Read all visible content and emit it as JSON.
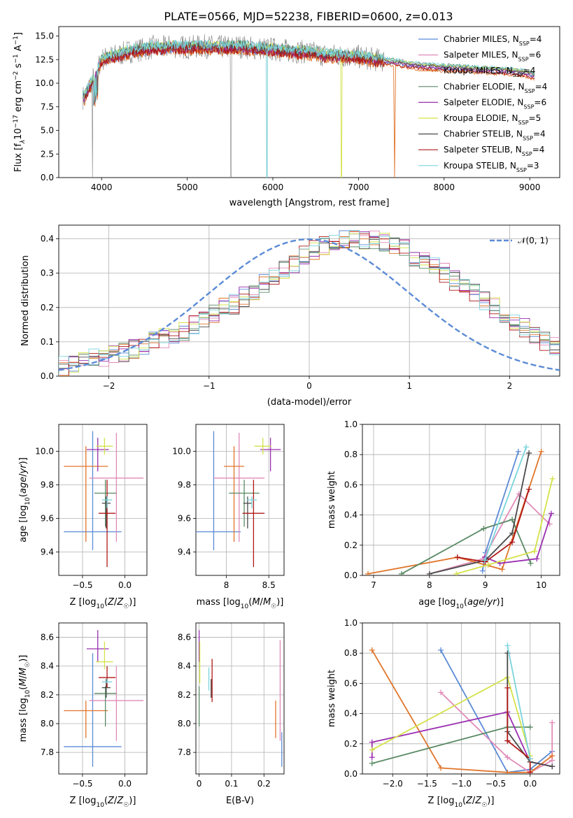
{
  "title": "PLATE=0566, MJD=52238, FIBERID=0600, z=0.013",
  "colors": [
    "#5b8bd6",
    "#e08bb8",
    "#e0752b",
    "#5a8a65",
    "#9a2fb0",
    "#d4e24a",
    "#4a4a4a",
    "#b01818",
    "#7ad4dc"
  ],
  "gray": "#808080",
  "chart_data": [
    {
      "id": "spectrum",
      "type": "line",
      "xlabel": "wavelength [Angstrom, rest frame]",
      "ylabel": "Flux [f_λ 10^-17 erg cm^-2 s^-1 A^-1]",
      "xlim": [
        3500,
        9350
      ],
      "ylim": [
        0,
        16
      ],
      "xticks": [
        4000,
        5000,
        6000,
        7000,
        8000,
        9000
      ],
      "yticks": [
        0.0,
        2.5,
        5.0,
        7.5,
        10.0,
        12.5,
        15.0
      ],
      "grid": false,
      "legend_position": "top-right",
      "data_points": {
        "x": [
          3800,
          3850,
          3900,
          3950,
          4000,
          4100,
          4200,
          4300,
          4400,
          4500,
          4600,
          4700,
          4800,
          5000,
          5200,
          5400,
          5600,
          5800,
          6000,
          6200,
          6400,
          6600,
          6800,
          7000,
          7200,
          7400,
          7600,
          7800,
          8000,
          8200,
          8400,
          8600,
          8800,
          9000,
          9050
        ],
        "y": [
          8.5,
          9.5,
          10.5,
          11.5,
          12.5,
          12.8,
          13.0,
          13.3,
          13.5,
          13.6,
          13.8,
          13.7,
          13.9,
          13.8,
          13.9,
          13.8,
          13.9,
          13.7,
          13.6,
          13.4,
          13.3,
          13.0,
          12.9,
          12.8,
          12.5,
          12.3,
          12.0,
          11.8,
          11.7,
          11.6,
          11.5,
          11.4,
          11.3,
          11.0,
          10.8
        ]
      },
      "series": [
        {
          "name": "Chabrier MILES, N_SSP=4"
        },
        {
          "name": "Salpeter MILES, N_SSP=6"
        },
        {
          "name": "Kroupa MILES, N_SSP=4"
        },
        {
          "name": "Chabrier ELODIE, N_SSP=4"
        },
        {
          "name": "Salpeter ELODIE, N_SSP=6"
        },
        {
          "name": "Kroupa ELODIE, N_SSP=5"
        },
        {
          "name": "Chabrier STELIB, N_SSP=4"
        },
        {
          "name": "Salpeter STELIB, N_SSP=4"
        },
        {
          "name": "Kroupa STELIB, N_SSP=3"
        }
      ],
      "legend": [
        {
          "prefix": "Chabrier MILES, N",
          "sub": "SSP",
          "suffix": "=4"
        },
        {
          "prefix": "Salpeter MILES, N",
          "sub": "SSP",
          "suffix": "=6"
        },
        {
          "prefix": "Kroupa MILES, N",
          "sub": "SSP",
          "suffix": "=4"
        },
        {
          "prefix": "Chabrier ELODIE, N",
          "sub": "SSP",
          "suffix": "=4"
        },
        {
          "prefix": "Salpeter ELODIE, N",
          "sub": "SSP",
          "suffix": "=6"
        },
        {
          "prefix": "Kroupa ELODIE, N",
          "sub": "SSP",
          "suffix": "=5"
        },
        {
          "prefix": "Chabrier STELIB, N",
          "sub": "SSP",
          "suffix": "=4"
        },
        {
          "prefix": "Salpeter STELIB, N",
          "sub": "SSP",
          "suffix": "=4"
        },
        {
          "prefix": "Kroupa STELIB, N",
          "sub": "SSP",
          "suffix": "=3"
        }
      ]
    },
    {
      "id": "residuals",
      "type": "histogram",
      "xlabel": "(data-model)/error",
      "ylabel": "Normed distribution",
      "xlim": [
        -2.5,
        2.5
      ],
      "ylim": [
        0,
        0.44
      ],
      "xticks": [
        -2,
        -1,
        0,
        1,
        2
      ],
      "xticklabels": [
        "−2",
        "−1",
        "0",
        "1",
        "2"
      ],
      "yticks": [
        0.0,
        0.1,
        0.2,
        0.3,
        0.4
      ],
      "grid": true,
      "legend_position": "top-right",
      "legend": "𝒩(0, 1)",
      "bin_width": 0.1,
      "bin_range": [
        -2.5,
        2.5
      ],
      "values": [
        0.03,
        0.04,
        0.04,
        0.05,
        0.05,
        0.06,
        0.07,
        0.08,
        0.09,
        0.1,
        0.11,
        0.12,
        0.13,
        0.15,
        0.16,
        0.18,
        0.2,
        0.21,
        0.23,
        0.25,
        0.27,
        0.29,
        0.31,
        0.33,
        0.35,
        0.37,
        0.38,
        0.39,
        0.4,
        0.4,
        0.4,
        0.4,
        0.39,
        0.38,
        0.37,
        0.35,
        0.34,
        0.32,
        0.3,
        0.28,
        0.26,
        0.24,
        0.22,
        0.2,
        0.18,
        0.16,
        0.14,
        0.12,
        0.1,
        0.09
      ]
    },
    {
      "id": "age_vs_Z",
      "type": "errorbar",
      "xlabel": "Z [log10(Z/Z☉)]",
      "ylabel": "age [log10(age/yr)]",
      "xlim": [
        -0.78,
        0.26
      ],
      "ylim": [
        9.26,
        10.16
      ],
      "xticks": [
        -0.5,
        0.0
      ],
      "xticklabels": [
        "−0.5",
        "0.0"
      ],
      "yticks": [
        9.4,
        9.6,
        9.8,
        10.0
      ],
      "grid": true,
      "points": [
        {
          "x": -0.38,
          "xerr": 0.34,
          "y": 9.52,
          "yerr": [
            0.11,
            0.6
          ]
        },
        {
          "x": -0.1,
          "xerr": 0.32,
          "y": 9.84,
          "yerr": [
            0.38,
            0.27
          ]
        },
        {
          "x": -0.46,
          "xerr": 0.26,
          "y": 9.91,
          "yerr": [
            0.45,
            0.12
          ]
        },
        {
          "x": -0.23,
          "xerr": 0.13,
          "y": 9.75,
          "yerr": [
            0.2,
            0.08
          ]
        },
        {
          "x": -0.32,
          "xerr": 0.13,
          "y": 10.01,
          "yerr": [
            0.13,
            0.07
          ]
        },
        {
          "x": -0.24,
          "xerr": 0.1,
          "y": 10.03,
          "yerr": [
            0.05,
            0.05
          ]
        },
        {
          "x": -0.22,
          "xerr": 0.05,
          "y": 9.69,
          "yerr": [
            0.15,
            0.04
          ]
        },
        {
          "x": -0.21,
          "xerr": 0.1,
          "y": 9.63,
          "yerr": [
            0.32,
            0.2
          ]
        },
        {
          "x": -0.21,
          "xerr": 0.06,
          "y": 9.71,
          "yerr": [
            0.05,
            0.02
          ]
        }
      ]
    },
    {
      "id": "age_vs_mass",
      "type": "errorbar",
      "xlabel": "mass [log10(M/M☉)]",
      "ylabel": "",
      "xlim": [
        7.64,
        8.68
      ],
      "ylim": [
        9.26,
        10.16
      ],
      "xticks": [
        8.0,
        8.5
      ],
      "yticks": [
        9.4,
        9.6,
        9.8,
        10.0
      ],
      "grid": true,
      "points": [
        {
          "x": 7.85,
          "xerr": 0.32,
          "y": 9.52,
          "yerr": [
            0.11,
            0.6
          ]
        },
        {
          "x": 8.15,
          "xerr": 0.3,
          "y": 9.84,
          "yerr": [
            0.38,
            0.27
          ]
        },
        {
          "x": 8.09,
          "xerr": 0.12,
          "y": 9.91,
          "yerr": [
            0.45,
            0.12
          ]
        },
        {
          "x": 8.21,
          "xerr": 0.18,
          "y": 9.75,
          "yerr": [
            0.2,
            0.08
          ]
        },
        {
          "x": 8.52,
          "xerr": 0.12,
          "y": 10.01,
          "yerr": [
            0.13,
            0.07
          ]
        },
        {
          "x": 8.43,
          "xerr": 0.1,
          "y": 10.03,
          "yerr": [
            0.05,
            0.05
          ]
        },
        {
          "x": 8.25,
          "xerr": 0.05,
          "y": 9.69,
          "yerr": [
            0.15,
            0.04
          ]
        },
        {
          "x": 8.32,
          "xerr": 0.13,
          "y": 9.63,
          "yerr": [
            0.32,
            0.2
          ]
        },
        {
          "x": 8.3,
          "xerr": 0.06,
          "y": 9.71,
          "yerr": [
            0.05,
            0.02
          ]
        }
      ]
    },
    {
      "id": "weight_vs_age",
      "type": "line",
      "xlabel": "age [log10(age/yr)]",
      "ylabel": "mass weight",
      "xlim": [
        6.8,
        10.33
      ],
      "ylim": [
        0,
        1
      ],
      "xticks": [
        7,
        8,
        9,
        10
      ],
      "yticks": [
        0.0,
        0.2,
        0.4,
        0.6,
        0.8,
        1.0
      ],
      "grid": true,
      "series": [
        {
          "x": [
            8.95,
            9.0,
            9.59
          ],
          "y": [
            0.03,
            0.15,
            0.82
          ]
        },
        {
          "x": [
            8.0,
            8.96,
            9.6,
            10.15
          ],
          "y": [
            0.01,
            0.11,
            0.54,
            0.34
          ]
        },
        {
          "x": [
            6.9,
            8.5,
            9.3,
            10.0
          ],
          "y": [
            0.01,
            0.12,
            0.04,
            0.82
          ]
        },
        {
          "x": [
            7.5,
            8.97,
            9.48,
            9.81
          ],
          "y": [
            0.01,
            0.31,
            0.37,
            0.08
          ]
        },
        {
          "x": [
            8.99,
            9.26,
            9.92,
            10.18
          ],
          "y": [
            0.12,
            0.08,
            0.11,
            0.41
          ]
        },
        {
          "x": [
            8.48,
            9.05,
            9.88,
            10.2
          ],
          "y": [
            0.01,
            0.07,
            0.16,
            0.64
          ]
        },
        {
          "x": [
            8.0,
            9.0,
            9.48,
            9.78
          ],
          "y": [
            0.01,
            0.1,
            0.28,
            0.81
          ]
        },
        {
          "x": [
            8.5,
            9.0,
            9.48,
            9.78
          ],
          "y": [
            0.12,
            0.09,
            0.22,
            0.57
          ]
        },
        {
          "x": [
            8.99,
            9.73
          ],
          "y": [
            0.1,
            0.85
          ]
        }
      ]
    },
    {
      "id": "mass_vs_Z",
      "type": "errorbar",
      "xlabel": "Z [log10(Z/Z☉)]",
      "ylabel": "mass [log10(M/M☉)]",
      "xlim": [
        -0.78,
        0.26
      ],
      "ylim": [
        7.65,
        8.7
      ],
      "xticks": [
        -0.5,
        0.0
      ],
      "xticklabels": [
        "−0.5",
        "0.0"
      ],
      "yticks": [
        7.8,
        8.0,
        8.2,
        8.4,
        8.6
      ],
      "grid": true,
      "points": [
        {
          "x": -0.38,
          "xerr": 0.34,
          "y": 7.84,
          "yerr": [
            0.14,
            0.65
          ]
        },
        {
          "x": -0.1,
          "xerr": 0.32,
          "y": 8.16,
          "yerr": [
            0.28,
            0.24
          ]
        },
        {
          "x": -0.46,
          "xerr": 0.26,
          "y": 8.09,
          "yerr": [
            0.19,
            0.07
          ]
        },
        {
          "x": -0.23,
          "xerr": 0.13,
          "y": 8.21,
          "yerr": [
            0.23,
            0.05
          ]
        },
        {
          "x": -0.32,
          "xerr": 0.13,
          "y": 8.52,
          "yerr": [
            0.09,
            0.13
          ]
        },
        {
          "x": -0.24,
          "xerr": 0.1,
          "y": 8.43,
          "yerr": [
            0.05,
            0.14
          ]
        },
        {
          "x": -0.22,
          "xerr": 0.05,
          "y": 8.25,
          "yerr": [
            0.07,
            0.06
          ]
        },
        {
          "x": -0.21,
          "xerr": 0.1,
          "y": 8.32,
          "yerr": [
            0.07,
            0.08
          ]
        },
        {
          "x": -0.21,
          "xerr": 0.06,
          "y": 8.29,
          "yerr": [
            0.01,
            0.02
          ]
        }
      ]
    },
    {
      "id": "mass_vs_EBV",
      "type": "errorbar",
      "xlabel": "E(B-V)",
      "ylabel": "",
      "xlim": [
        -0.01,
        0.262
      ],
      "ylim": [
        7.65,
        8.7
      ],
      "xticks": [
        0.0,
        0.1,
        0.2
      ],
      "yticks": [
        7.8,
        8.0,
        8.2,
        8.4,
        8.6
      ],
      "grid": true,
      "points": [
        {
          "x": 0.255,
          "xerr": 0,
          "y": 7.84,
          "yerr": [
            0.14,
            0.1
          ]
        },
        {
          "x": 0.25,
          "xerr": 0,
          "y": 8.16,
          "yerr": [
            0.28,
            0.42
          ]
        },
        {
          "x": 0.236,
          "xerr": 0,
          "y": 8.09,
          "yerr": [
            0.19,
            0.07
          ]
        },
        {
          "x": 0.0,
          "xerr": 0,
          "y": 8.21,
          "yerr": [
            0.23,
            0.05
          ]
        },
        {
          "x": 0.0,
          "xerr": 0,
          "y": 8.52,
          "yerr": [
            0.09,
            0.13
          ]
        },
        {
          "x": 0.002,
          "xerr": 0,
          "y": 8.43,
          "yerr": [
            0.15,
            0.14
          ]
        },
        {
          "x": 0.037,
          "xerr": 0,
          "y": 8.25,
          "yerr": [
            0.07,
            0.06
          ]
        },
        {
          "x": 0.04,
          "xerr": 0,
          "y": 8.32,
          "yerr": [
            0.17,
            0.13
          ]
        },
        {
          "x": 0.03,
          "xerr": 0,
          "y": 8.29,
          "yerr": [
            0.06,
            0.1
          ]
        }
      ]
    },
    {
      "id": "weight_vs_Z",
      "type": "line",
      "xlabel": "Z [log10(Z/Z☉)]",
      "ylabel": "mass weight",
      "xlim": [
        -2.44,
        0.43
      ],
      "ylim": [
        0,
        1
      ],
      "xticks": [
        -2.0,
        -1.5,
        -1.0,
        -0.5,
        0.0
      ],
      "xticklabels": [
        "−2.0",
        "−1.5",
        "−1.0",
        "−0.5",
        "0.0"
      ],
      "yticks": [
        0.0,
        0.2,
        0.4,
        0.6,
        0.8,
        1.0
      ],
      "grid": true,
      "series": [
        {
          "x": [
            -1.3,
            -0.33,
            0.0,
            0.32
          ],
          "y": [
            0.82,
            0.01,
            0.03,
            0.15
          ]
        },
        {
          "x": [
            -1.3,
            -0.33,
            0.0,
            0.32,
            0.32
          ],
          "y": [
            0.54,
            0.11,
            0.01,
            0.09,
            0.34
          ]
        },
        {
          "x": [
            -2.3,
            -1.3,
            -0.33,
            0.0,
            0.32
          ],
          "y": [
            0.82,
            0.04,
            0.01,
            0.01,
            0.12
          ]
        },
        {
          "x": [
            -2.3,
            -0.33,
            0.0
          ],
          "y": [
            0.07,
            0.31,
            0.31
          ]
        },
        {
          "x": [
            -2.3,
            -2.3,
            -0.33,
            0.0,
            0.32
          ],
          "y": [
            0.11,
            0.21,
            0.41,
            0.08,
            0.05
          ]
        },
        {
          "x": [
            -2.3,
            -0.33,
            0.0
          ],
          "y": [
            0.16,
            0.64,
            0.12
          ]
        },
        {
          "x": [
            -0.33,
            -0.33,
            0.0,
            0.32
          ],
          "y": [
            0.8,
            0.28,
            0.08,
            0.05
          ]
        },
        {
          "x": [
            -0.33,
            -0.33,
            -0.33,
            0.0,
            0.0
          ],
          "y": [
            0.57,
            0.22,
            0.22,
            0.1,
            0.01
          ]
        },
        {
          "x": [
            -0.33,
            0.0
          ],
          "y": [
            0.85,
            0.1
          ]
        }
      ]
    }
  ]
}
